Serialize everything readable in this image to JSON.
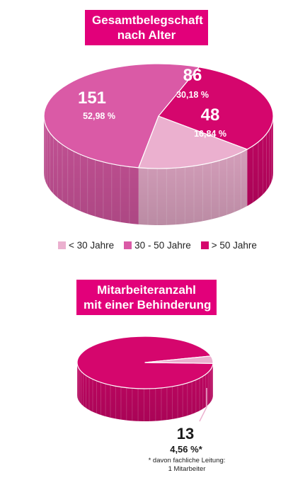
{
  "chart_data": [
    {
      "type": "pie",
      "title": [
        "Gesamtbelegschaft",
        "nach Alter"
      ],
      "slices": [
        {
          "label": "< 30 Jahre",
          "count": "48",
          "percent": "16,84 %",
          "value": 16.84,
          "color": "#ebb0cf"
        },
        {
          "label": "30 - 50 Jahre",
          "count": "151",
          "percent": "52,98 %",
          "value": 52.98,
          "color": "#da5aa6"
        },
        {
          "label": "> 50 Jahre",
          "count": "86",
          "percent": "30,18 %",
          "value": 30.18,
          "color": "#d5066d"
        }
      ],
      "legend": [
        "< 30 Jahre",
        "30 - 50 Jahre",
        "> 50 Jahre"
      ]
    },
    {
      "type": "pie",
      "title": [
        "Mitarbeiteranzahl",
        "mit einer Behinderung"
      ],
      "slices": [
        {
          "label": "",
          "value": 95.44,
          "color": "#d5066d"
        },
        {
          "label": "",
          "count": "13",
          "percent": "4,56 %*",
          "value": 4.56,
          "color": "#ebb0cf"
        }
      ],
      "footnote": [
        "* davon fachliche Leitung:",
        "1 Mitarbeiter"
      ]
    }
  ]
}
